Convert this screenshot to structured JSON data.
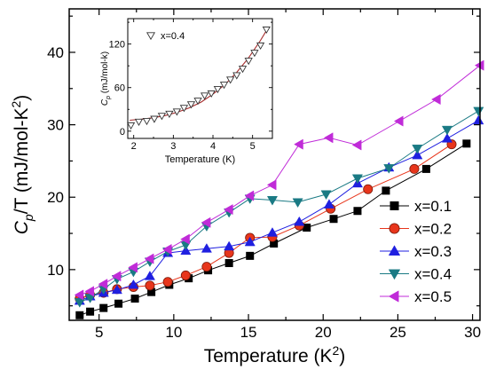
{
  "chart_data": [
    {
      "type": "scatter",
      "xlabel": "Temperature (K",
      "xlabel_sup": "2",
      "xlabel_end": ")",
      "ylabel_main": "C",
      "ylabel_sub": "p",
      "ylabel_rest": "/T (mJ/mol-K",
      "ylabel_sup": "2",
      "ylabel_end": ")",
      "xlim": [
        3,
        30.5
      ],
      "ylim": [
        3,
        46
      ],
      "xticks": [
        "5",
        "10",
        "15",
        "20",
        "25",
        "30"
      ],
      "yticks": [
        "10",
        "20",
        "30",
        "40"
      ],
      "legend_position": "bottom-right",
      "series": [
        {
          "name": "x=0.1",
          "marker": "square",
          "color": "#000000",
          "x": [
            3.7,
            4.4,
            5.3,
            6.3,
            7.4,
            8.5,
            9.7,
            11.0,
            12.3,
            13.7,
            15.1,
            16.7,
            18.9,
            20.7,
            22.3,
            24.2,
            26.9,
            29.6
          ],
          "y": [
            3.7,
            4.2,
            4.7,
            5.3,
            6.0,
            6.9,
            7.9,
            8.8,
            9.9,
            10.9,
            11.9,
            13.6,
            15.8,
            17.0,
            18.1,
            20.9,
            23.9,
            27.4
          ]
        },
        {
          "name": "x=0.2",
          "marker": "circle",
          "color": "#e8351b",
          "x": [
            3.7,
            4.4,
            5.3,
            6.2,
            7.3,
            8.4,
            9.6,
            10.8,
            12.2,
            13.7,
            15.1,
            16.6,
            18.4,
            20.5,
            23.0,
            26.1,
            28.6
          ],
          "y": [
            6.0,
            6.5,
            6.8,
            7.3,
            7.6,
            7.8,
            8.3,
            9.2,
            10.4,
            12.3,
            14.4,
            14.5,
            16.1,
            18.4,
            21.1,
            23.9,
            27.3
          ]
        },
        {
          "name": "x=0.3",
          "marker": "triangle-up",
          "color": "#1f1fe0",
          "x": [
            3.7,
            4.4,
            5.3,
            6.2,
            7.3,
            8.4,
            9.6,
            10.8,
            12.2,
            13.7,
            15.1,
            16.6,
            18.4,
            20.4,
            22.3,
            24.4,
            26.3,
            28.3,
            30.4
          ],
          "y": [
            5.7,
            6.3,
            6.8,
            7.2,
            7.9,
            9.1,
            12.3,
            12.6,
            12.9,
            13.2,
            13.8,
            15.1,
            16.6,
            19.0,
            21.9,
            24.1,
            25.8,
            28.1,
            30.6
          ]
        },
        {
          "name": "x=0.4",
          "marker": "triangle-down",
          "color": "#1a7a84",
          "x": [
            3.7,
            4.4,
            5.3,
            6.2,
            7.3,
            8.4,
            9.6,
            10.8,
            12.2,
            13.7,
            15.1,
            16.6,
            18.3,
            20.2,
            22.3,
            24.4,
            26.3,
            28.3,
            30.4
          ],
          "y": [
            5.5,
            6.1,
            7.3,
            8.7,
            9.7,
            11.1,
            12.5,
            13.4,
            16.0,
            17.9,
            19.8,
            19.6,
            19.3,
            20.4,
            22.6,
            24.0,
            26.7,
            29.3,
            31.9
          ]
        },
        {
          "name": "x=0.5",
          "marker": "triangle-left",
          "color": "#c02bd8",
          "x": [
            3.7,
            4.4,
            5.3,
            6.2,
            7.3,
            8.4,
            9.6,
            10.8,
            12.2,
            13.7,
            15.1,
            16.6,
            18.4,
            20.4,
            22.3,
            25.1,
            27.6,
            30.5
          ],
          "y": [
            6.5,
            7.0,
            8.0,
            9.1,
            10.3,
            11.5,
            12.8,
            14.2,
            16.5,
            18.3,
            20.2,
            21.7,
            27.3,
            28.2,
            27.2,
            30.5,
            33.5,
            38.2
          ]
        }
      ]
    },
    {
      "type": "scatter",
      "title": "",
      "xlabel": "Temperature (K)",
      "ylabel_main": "C",
      "ylabel_sub": "p",
      "ylabel_rest": " (mJ/mol-k)",
      "xlim": [
        1.85,
        5.5
      ],
      "ylim": [
        -10,
        155
      ],
      "xticks": [
        "2",
        "3",
        "4",
        "5"
      ],
      "yticks": [
        "0",
        "60",
        "120"
      ],
      "series": [
        {
          "name": "x=0.4",
          "marker": "triangle-down-open",
          "color": "#000000",
          "x": [
            1.93,
            2.13,
            2.33,
            2.52,
            2.71,
            2.9,
            3.09,
            3.27,
            3.45,
            3.62,
            3.79,
            3.96,
            4.12,
            4.28,
            4.44,
            4.6,
            4.75,
            4.9,
            5.05,
            5.2,
            5.35
          ],
          "y": [
            8,
            13,
            14,
            17,
            21,
            24,
            27,
            32,
            37,
            42,
            49,
            52,
            58,
            64,
            71,
            77,
            86,
            97,
            108,
            118,
            140
          ]
        },
        {
          "name": "fit",
          "type": "line",
          "color": "#a52a2a",
          "x": [
            1.9,
            2.2,
            2.5,
            2.8,
            3.1,
            3.4,
            3.7,
            4.0,
            4.3,
            4.6,
            4.9,
            5.2,
            5.4
          ],
          "y": [
            15,
            16.5,
            18.5,
            21.5,
            26,
            32,
            40,
            51,
            64,
            81,
            101,
            125,
            143
          ]
        }
      ]
    }
  ]
}
